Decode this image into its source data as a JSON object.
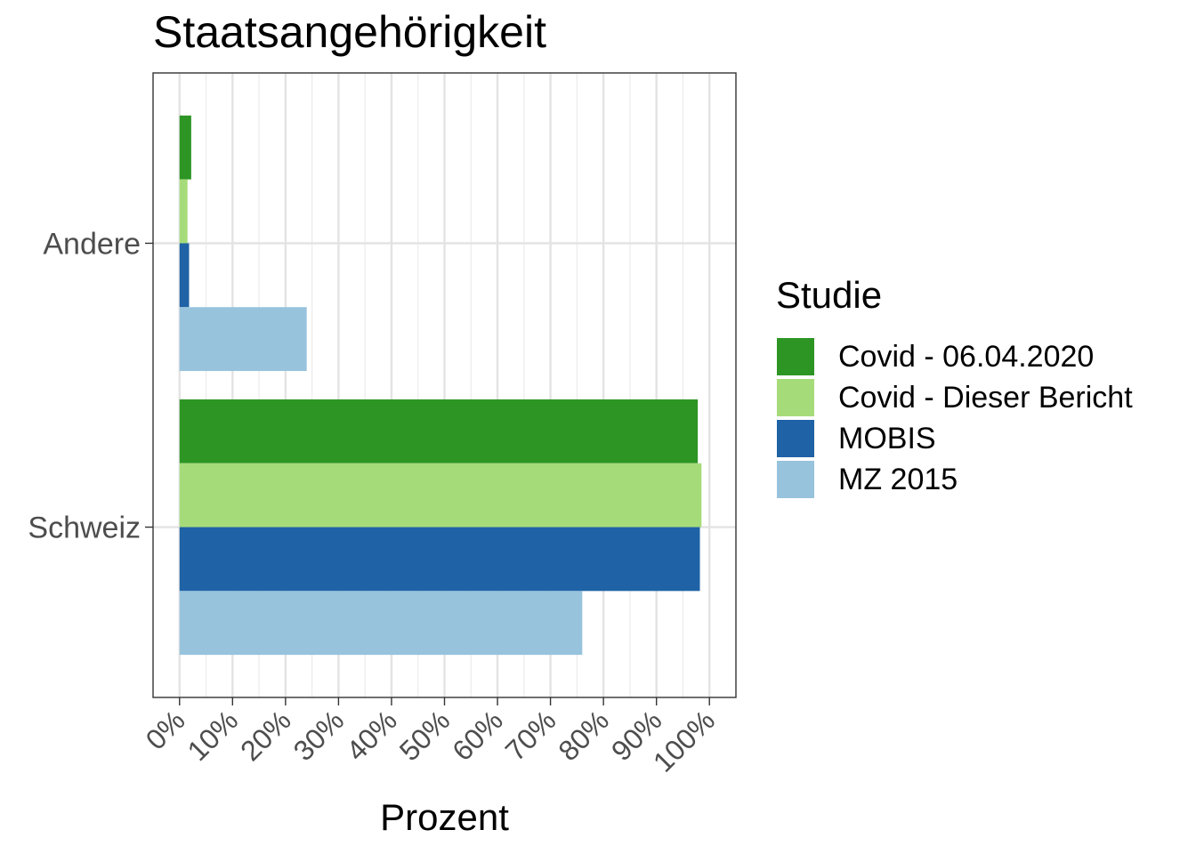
{
  "chart_data": {
    "type": "bar",
    "orientation": "horizontal",
    "title": "Staatsangehörigkeit",
    "xlabel": "Prozent",
    "ylabel": "",
    "categories": [
      "Schweiz",
      "Andere"
    ],
    "series": [
      {
        "name": "Covid - 06.04.2020",
        "color": "#2d9524",
        "values": [
          97.8,
          2.2
        ]
      },
      {
        "name": "Covid - Dieser Bericht",
        "color": "#a6db7a",
        "values": [
          98.5,
          1.5
        ]
      },
      {
        "name": "MOBIS",
        "color": "#1f62a6",
        "values": [
          98.2,
          1.8
        ]
      },
      {
        "name": "MZ 2015",
        "color": "#97c3dd",
        "values": [
          76.0,
          24.0
        ]
      }
    ],
    "xlim": [
      -5,
      105
    ],
    "xticks": [
      0,
      10,
      20,
      30,
      40,
      50,
      60,
      70,
      80,
      90,
      100
    ],
    "xtick_labels": [
      "0%",
      "10%",
      "20%",
      "30%",
      "40%",
      "50%",
      "60%",
      "70%",
      "80%",
      "90%",
      "100%"
    ],
    "grid": true,
    "legend": {
      "title": "Studie",
      "position": "right"
    }
  }
}
